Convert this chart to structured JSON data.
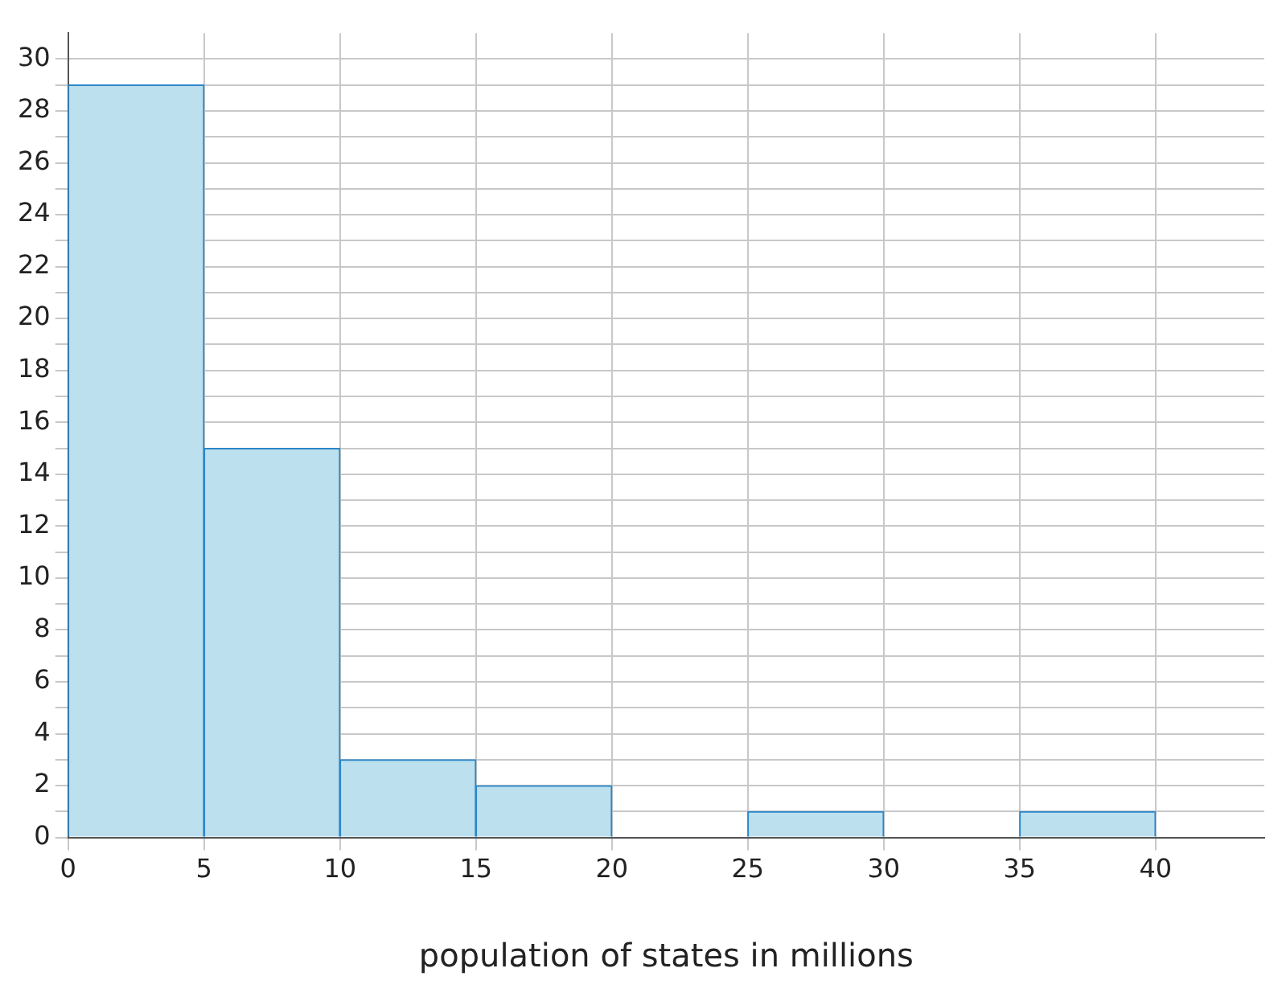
{
  "chart_data": {
    "type": "histogram",
    "xlabel": "population of states in millions",
    "bins": [
      0,
      5,
      10,
      15,
      20,
      25,
      30,
      35,
      40
    ],
    "values": [
      29,
      15,
      3,
      2,
      0,
      1,
      0,
      1
    ],
    "color": "#bde0ee",
    "xlim": [
      0,
      44
    ],
    "xticks": [
      0,
      5,
      10,
      15,
      20,
      25,
      30,
      35,
      40
    ],
    "ylim": [
      0,
      31
    ],
    "yticks": [
      0,
      {
        "value": 1,
        "label": null
      },
      2,
      {
        "value": 3,
        "label": null
      },
      4,
      {
        "value": 5,
        "label": null
      },
      6,
      {
        "value": 7,
        "label": null
      },
      8,
      {
        "value": 9,
        "label": null
      },
      10,
      {
        "value": 11,
        "label": null
      },
      12,
      {
        "value": 13,
        "label": null
      },
      14,
      {
        "value": 15,
        "label": null
      },
      16,
      {
        "value": 17,
        "label": null
      },
      18,
      {
        "value": 19,
        "label": null
      },
      20,
      {
        "value": 21,
        "label": null
      },
      22,
      {
        "value": 23,
        "label": null
      },
      24,
      {
        "value": 25,
        "label": null
      },
      26,
      {
        "value": 27,
        "label": null
      },
      28,
      {
        "value": 29,
        "label": null
      },
      30
    ],
    "grid": true
  }
}
